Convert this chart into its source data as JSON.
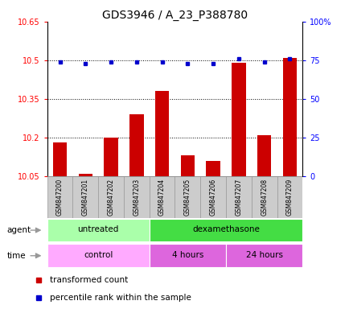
{
  "title": "GDS3946 / A_23_P388780",
  "samples": [
    "GSM847200",
    "GSM847201",
    "GSM847202",
    "GSM847203",
    "GSM847204",
    "GSM847205",
    "GSM847206",
    "GSM847207",
    "GSM847208",
    "GSM847209"
  ],
  "bar_values": [
    10.18,
    10.06,
    10.2,
    10.29,
    10.38,
    10.13,
    10.11,
    10.49,
    10.21,
    10.51
  ],
  "bar_base": 10.05,
  "percentile_values": [
    74,
    73,
    74,
    74,
    74,
    73,
    73,
    76,
    74,
    76
  ],
  "bar_color": "#cc0000",
  "dot_color": "#0000cc",
  "ylim_left": [
    10.05,
    10.65
  ],
  "ylim_right": [
    0,
    100
  ],
  "yticks_left": [
    10.05,
    10.2,
    10.35,
    10.5,
    10.65
  ],
  "ytick_labels_left": [
    "10.05",
    "10.2",
    "10.35",
    "10.5",
    "10.65"
  ],
  "yticks_right": [
    0,
    25,
    50,
    75,
    100
  ],
  "ytick_labels_right": [
    "0",
    "25",
    "50",
    "75",
    "100%"
  ],
  "hlines": [
    10.2,
    10.35,
    10.5
  ],
  "agent_groups": [
    {
      "label": "untreated",
      "start": 0,
      "end": 4,
      "color": "#aaffaa"
    },
    {
      "label": "dexamethasone",
      "start": 4,
      "end": 10,
      "color": "#44dd44"
    }
  ],
  "time_groups": [
    {
      "label": "control",
      "start": 0,
      "end": 4,
      "color": "#ffaaff"
    },
    {
      "label": "4 hours",
      "start": 4,
      "end": 7,
      "color": "#dd66dd"
    },
    {
      "label": "24 hours",
      "start": 7,
      "end": 10,
      "color": "#dd66dd"
    }
  ],
  "legend_items": [
    {
      "label": "transformed count",
      "color": "#cc0000"
    },
    {
      "label": "percentile rank within the sample",
      "color": "#0000cc"
    }
  ],
  "title_fontsize": 10,
  "tick_fontsize": 7,
  "label_fontsize": 7.5,
  "sample_fontsize": 5.5,
  "bar_width": 0.55
}
